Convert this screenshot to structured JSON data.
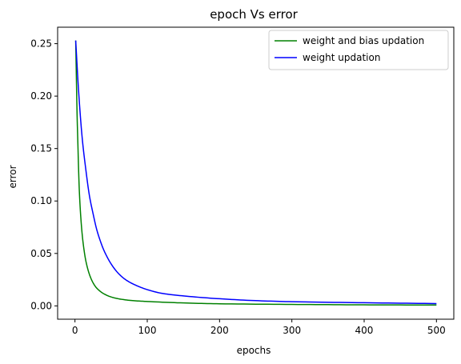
{
  "chart_data": {
    "type": "line",
    "title": "epoch Vs error",
    "xlabel": "epochs",
    "ylabel": "error",
    "xlim": [
      -24,
      524
    ],
    "ylim": [
      -0.0127,
      0.2657
    ],
    "xticks": [
      0,
      100,
      200,
      300,
      400,
      500
    ],
    "yticks": [
      0.0,
      0.05,
      0.1,
      0.15,
      0.2,
      0.25
    ],
    "ytick_labels": [
      "0.00",
      "0.05",
      "0.10",
      "0.15",
      "0.20",
      "0.25"
    ],
    "grid": false,
    "legend_position": "upper right",
    "series": [
      {
        "name": "weight and bias updation",
        "color": "#008000",
        "x": [
          1,
          2,
          3,
          4,
          5,
          6,
          8,
          10,
          12,
          15,
          20,
          25,
          30,
          40,
          50,
          60,
          80,
          100,
          150,
          200,
          300,
          400,
          500
        ],
        "y": [
          0.253,
          0.215,
          0.18,
          0.155,
          0.13,
          0.11,
          0.085,
          0.068,
          0.056,
          0.043,
          0.03,
          0.022,
          0.017,
          0.0115,
          0.0085,
          0.0068,
          0.005,
          0.0042,
          0.0028,
          0.002,
          0.0014,
          0.001,
          0.0008
        ]
      },
      {
        "name": "weight updation",
        "color": "#0000ff",
        "x": [
          1,
          5,
          10,
          15,
          20,
          25,
          30,
          35,
          40,
          50,
          60,
          70,
          80,
          100,
          120,
          150,
          200,
          250,
          300,
          400,
          500
        ],
        "y": [
          0.253,
          0.205,
          0.16,
          0.13,
          0.105,
          0.088,
          0.073,
          0.062,
          0.053,
          0.04,
          0.031,
          0.025,
          0.021,
          0.0155,
          0.012,
          0.0095,
          0.0068,
          0.005,
          0.004,
          0.003,
          0.0022
        ]
      }
    ]
  }
}
